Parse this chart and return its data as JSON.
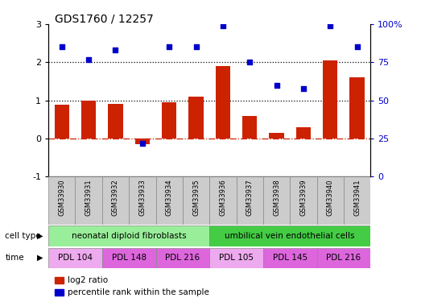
{
  "title": "GDS1760 / 12257",
  "samples": [
    "GSM33930",
    "GSM33931",
    "GSM33932",
    "GSM33933",
    "GSM33934",
    "GSM33935",
    "GSM33936",
    "GSM33937",
    "GSM33938",
    "GSM33939",
    "GSM33940",
    "GSM33941"
  ],
  "log2_ratio": [
    0.88,
    1.0,
    0.9,
    -0.15,
    0.95,
    1.1,
    1.9,
    0.6,
    0.15,
    0.3,
    2.05,
    1.6
  ],
  "percentile_rank": [
    85,
    77,
    83,
    22,
    85,
    85,
    99,
    75,
    60,
    58,
    99,
    85
  ],
  "bar_color": "#cc2200",
  "dot_color": "#0000cc",
  "ylim_left": [
    -1,
    3
  ],
  "ylim_right": [
    0,
    100
  ],
  "yticks_left": [
    -1,
    0,
    1,
    2,
    3
  ],
  "yticks_right": [
    0,
    25,
    50,
    75,
    100
  ],
  "hlines": [
    0,
    1,
    2
  ],
  "hline_styles": [
    "dashdot",
    "dotted",
    "dotted"
  ],
  "hline_colors": [
    "#cc2200",
    "#000000",
    "#000000"
  ],
  "cell_type_label": "cell type",
  "time_label": "time",
  "cell_types": [
    {
      "label": "neonatal diploid fibroblasts",
      "start": 0,
      "end": 6,
      "color": "#99ee99"
    },
    {
      "label": "umbilical vein endothelial cells",
      "start": 6,
      "end": 12,
      "color": "#44cc44"
    }
  ],
  "time_groups": [
    {
      "label": "PDL 104",
      "start": 0,
      "end": 2,
      "color": "#eeaaee"
    },
    {
      "label": "PDL 148",
      "start": 2,
      "end": 4,
      "color": "#dd66dd"
    },
    {
      "label": "PDL 216",
      "start": 4,
      "end": 6,
      "color": "#dd66dd"
    },
    {
      "label": "PDL 105",
      "start": 6,
      "end": 8,
      "color": "#eeaaee"
    },
    {
      "label": "PDL 145",
      "start": 8,
      "end": 10,
      "color": "#dd66dd"
    },
    {
      "label": "PDL 216",
      "start": 10,
      "end": 12,
      "color": "#dd66dd"
    }
  ],
  "legend_log2": "log2 ratio",
  "legend_pct": "percentile rank within the sample",
  "bg_color": "#ffffff",
  "tick_label_color_right": "#0000cc"
}
